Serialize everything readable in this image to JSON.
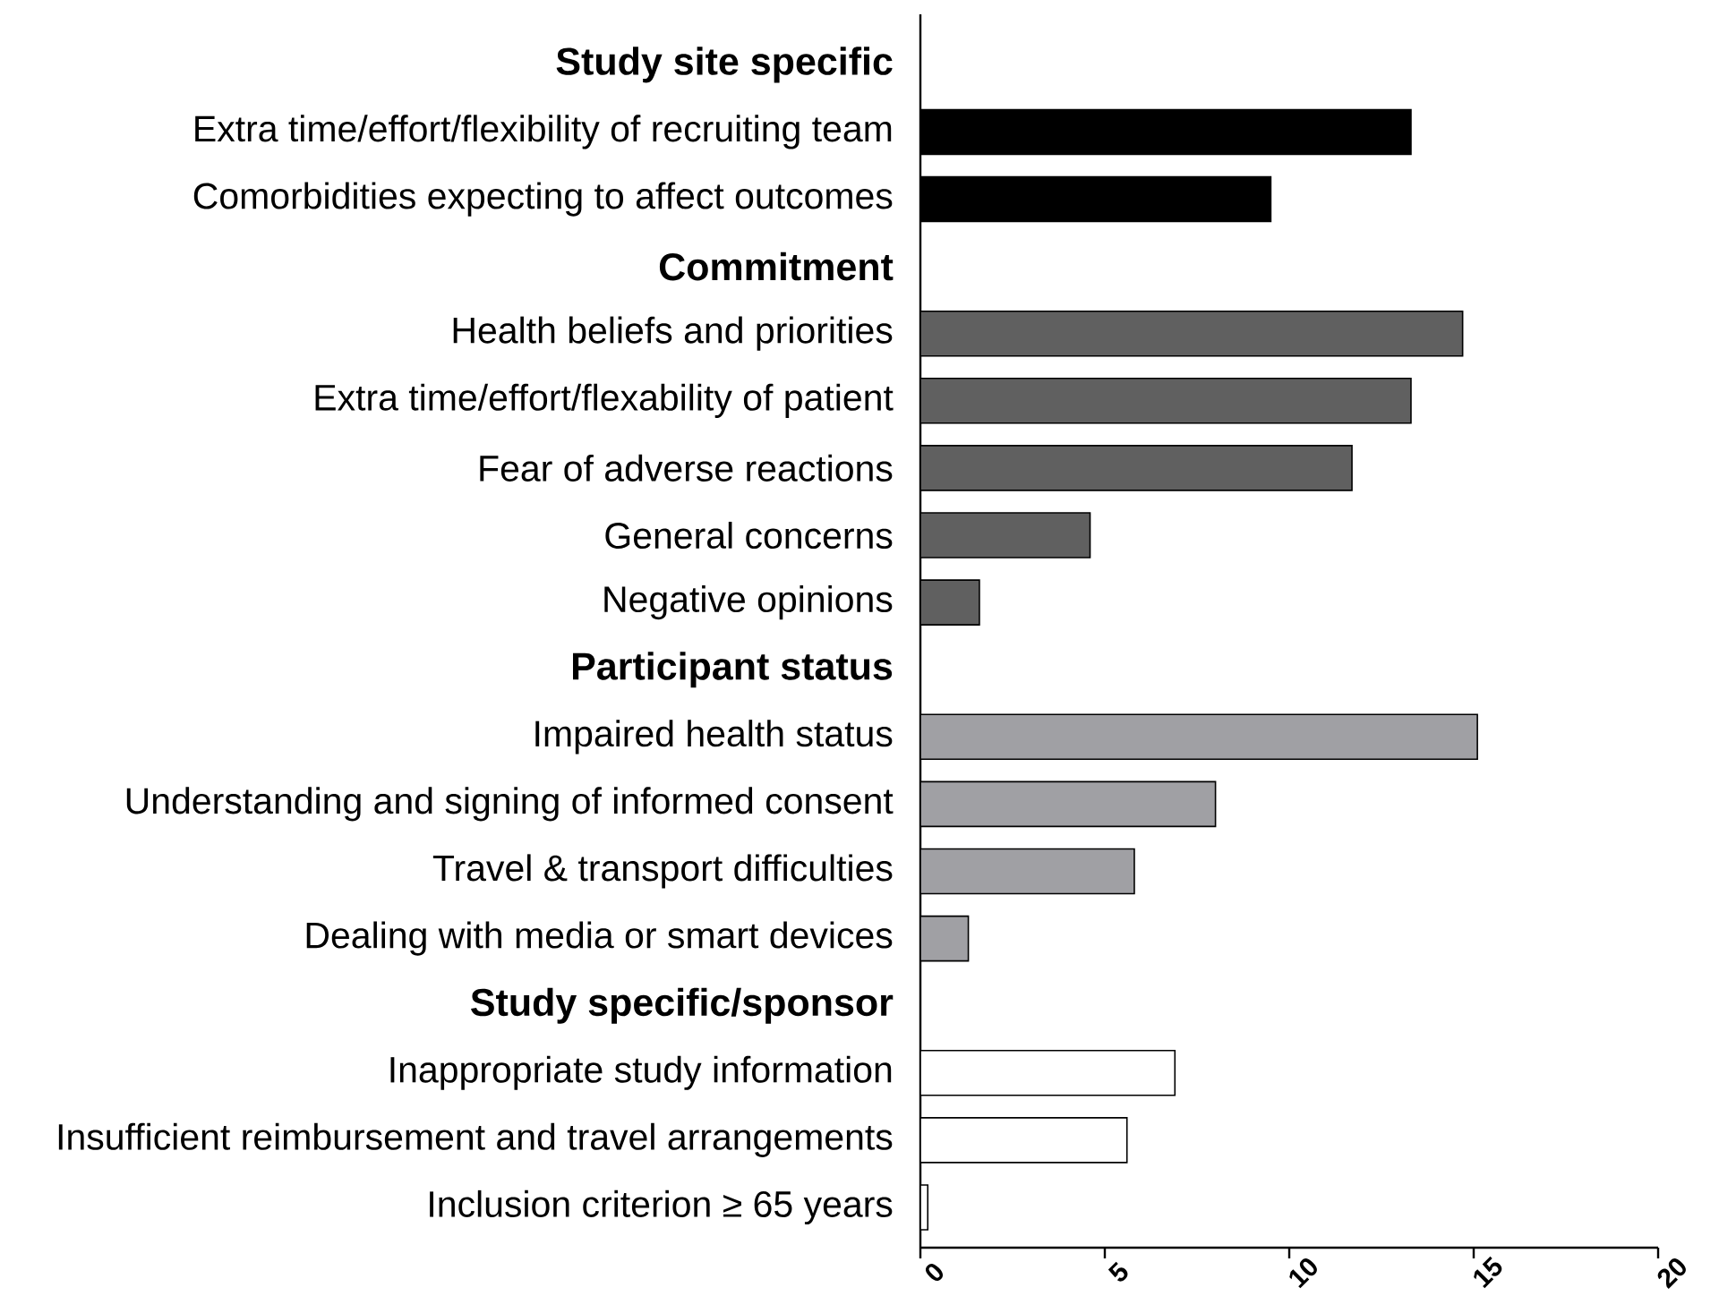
{
  "chart_data": {
    "type": "bar",
    "orientation": "horizontal",
    "categories": [
      "Study site specific",
      "Extra time/effort/flexibility of recruiting team",
      "Comorbidities expecting to affect outcomes",
      "Commitment",
      "Health beliefs and priorities",
      "Extra time/effort/flexability of patient",
      "Fear of adverse reactions",
      "General concerns",
      "Negative opinions",
      "Participant status",
      "Impaired health status",
      "Understanding and signing of informed consent",
      "Travel & transport difficulties",
      "Dealing with media or smart devices",
      "Study specific/sponsor",
      "Inappropriate study information",
      "Insufficient reimbursement and travel arrangements",
      "Inclusion criterion ≥ 65 years"
    ],
    "series": [
      {
        "color": "#000000",
        "values": [
          null,
          13.3,
          9.5,
          null,
          null,
          null,
          null,
          null,
          null,
          null,
          null,
          null,
          null,
          null,
          null,
          null,
          null,
          null
        ]
      },
      {
        "color": "#606060",
        "values": [
          null,
          null,
          null,
          null,
          14.7,
          13.3,
          11.7,
          4.6,
          1.6,
          null,
          null,
          null,
          null,
          null,
          null,
          null,
          null,
          null
        ]
      },
      {
        "color": "#a0a0a4",
        "values": [
          null,
          null,
          null,
          null,
          null,
          null,
          null,
          null,
          null,
          null,
          15.1,
          8.0,
          5.8,
          1.3,
          null,
          null,
          null,
          null
        ]
      },
      {
        "color": "#ffffff",
        "values": [
          null,
          null,
          null,
          null,
          null,
          null,
          null,
          null,
          null,
          null,
          null,
          null,
          null,
          null,
          null,
          6.9,
          5.6,
          0.2
        ]
      }
    ],
    "xlim": [
      0,
      20
    ],
    "xticks": [
      0,
      5,
      10,
      15,
      20
    ]
  }
}
